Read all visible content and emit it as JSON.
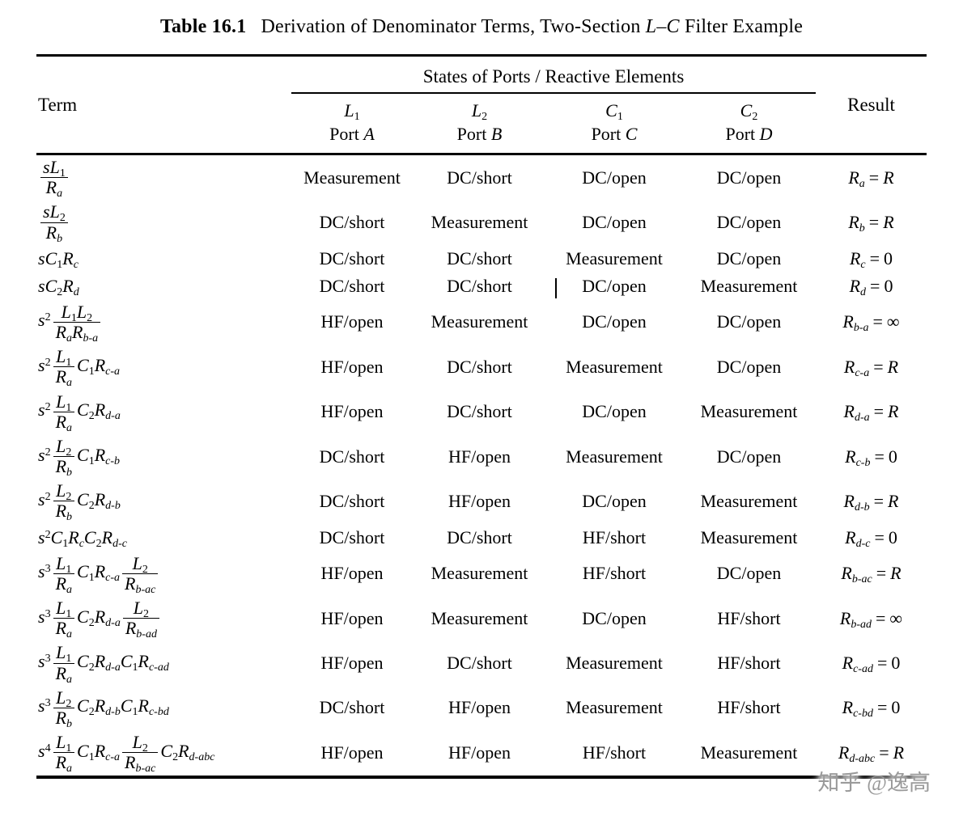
{
  "title": {
    "label": "Table 16.1",
    "segments": [
      {
        "text": "Derivation of Denominator Terms, Two-Section "
      },
      {
        "text": "L",
        "italic": true
      },
      {
        "text": "–"
      },
      {
        "text": "C",
        "italic": true
      },
      {
        "text": " Filter Example"
      }
    ]
  },
  "header": {
    "term": "Term",
    "group": "States of Ports / Reactive Elements",
    "result": "Result",
    "ports": [
      {
        "elem": "L",
        "idx": "1",
        "port_word": "Port",
        "port": "A"
      },
      {
        "elem": "L",
        "idx": "2",
        "port_word": "Port",
        "port": "B"
      },
      {
        "elem": "C",
        "idx": "1",
        "port_word": "Port",
        "port": "C"
      },
      {
        "elem": "C",
        "idx": "2",
        "port_word": "Port",
        "port": "D"
      }
    ]
  },
  "rows": [
    {
      "term": [
        {
          "num": [
            {
              "b": "s"
            },
            {
              "b": "L",
              "sub": "1"
            }
          ],
          "den": [
            {
              "b": "R",
              "sub": "a"
            }
          ]
        }
      ],
      "states": [
        "Measurement",
        "DC/short",
        "DC/open",
        "DC/open"
      ],
      "result": {
        "base": "R",
        "sub": "a",
        "eq": "R"
      }
    },
    {
      "term": [
        {
          "num": [
            {
              "b": "s"
            },
            {
              "b": "L",
              "sub": "2"
            }
          ],
          "den": [
            {
              "b": "R",
              "sub": "b"
            }
          ]
        }
      ],
      "states": [
        "DC/short",
        "Measurement",
        "DC/open",
        "DC/open"
      ],
      "result": {
        "base": "R",
        "sub": "b",
        "eq": "R"
      }
    },
    {
      "term": [
        {
          "b": "s"
        },
        {
          "b": "C",
          "sub": "1"
        },
        {
          "b": "R",
          "sub": "c"
        }
      ],
      "states": [
        "DC/short",
        "DC/short",
        "Measurement",
        "DC/open"
      ],
      "result": {
        "base": "R",
        "sub": "c",
        "eq": "0"
      }
    },
    {
      "term": [
        {
          "b": "s"
        },
        {
          "b": "C",
          "sub": "2"
        },
        {
          "b": "R",
          "sub": "d"
        }
      ],
      "states": [
        "DC/short",
        "DC/short",
        "DC/open",
        "Measurement"
      ],
      "result": {
        "base": "R",
        "sub": "d",
        "eq": "0"
      }
    },
    {
      "term": [
        {
          "b": "s",
          "sup": "2"
        },
        {
          "num": [
            {
              "b": "L",
              "sub": "1"
            },
            {
              "b": "L",
              "sub": "2"
            }
          ],
          "den": [
            {
              "b": "R",
              "sub": "a"
            },
            {
              "b": "R",
              "sub": "b-a"
            }
          ]
        }
      ],
      "states": [
        "HF/open",
        "Measurement",
        "DC/open",
        "DC/open"
      ],
      "result": {
        "base": "R",
        "sub": "b-a",
        "eq": "∞"
      }
    },
    {
      "term": [
        {
          "b": "s",
          "sup": "2"
        },
        {
          "num": [
            {
              "b": "L",
              "sub": "1"
            }
          ],
          "den": [
            {
              "b": "R",
              "sub": "a"
            }
          ]
        },
        {
          "b": "C",
          "sub": "1"
        },
        {
          "b": "R",
          "sub": "c-a"
        }
      ],
      "states": [
        "HF/open",
        "DC/short",
        "Measurement",
        "DC/open"
      ],
      "result": {
        "base": "R",
        "sub": "c-a",
        "eq": "R"
      }
    },
    {
      "term": [
        {
          "b": "s",
          "sup": "2"
        },
        {
          "num": [
            {
              "b": "L",
              "sub": "1"
            }
          ],
          "den": [
            {
              "b": "R",
              "sub": "a"
            }
          ]
        },
        {
          "b": "C",
          "sub": "2"
        },
        {
          "b": "R",
          "sub": "d-a"
        }
      ],
      "states": [
        "HF/open",
        "DC/short",
        "DC/open",
        "Measurement"
      ],
      "result": {
        "base": "R",
        "sub": "d-a",
        "eq": "R"
      }
    },
    {
      "term": [
        {
          "b": "s",
          "sup": "2"
        },
        {
          "num": [
            {
              "b": "L",
              "sub": "2"
            }
          ],
          "den": [
            {
              "b": "R",
              "sub": "b"
            }
          ]
        },
        {
          "b": "C",
          "sub": "1"
        },
        {
          "b": "R",
          "sub": "c-b"
        }
      ],
      "states": [
        "DC/short",
        "HF/open",
        "Measurement",
        "DC/open"
      ],
      "result": {
        "base": "R",
        "sub": "c-b",
        "eq": "0"
      }
    },
    {
      "term": [
        {
          "b": "s",
          "sup": "2"
        },
        {
          "num": [
            {
              "b": "L",
              "sub": "2"
            }
          ],
          "den": [
            {
              "b": "R",
              "sub": "b"
            }
          ]
        },
        {
          "b": "C",
          "sub": "2"
        },
        {
          "b": "R",
          "sub": "d-b"
        }
      ],
      "states": [
        "DC/short",
        "HF/open",
        "DC/open",
        "Measurement"
      ],
      "result": {
        "base": "R",
        "sub": "d-b",
        "eq": "R"
      }
    },
    {
      "term": [
        {
          "b": "s",
          "sup": "2"
        },
        {
          "b": "C",
          "sub": "1"
        },
        {
          "b": "R",
          "sub": "c"
        },
        {
          "b": "C",
          "sub": "2"
        },
        {
          "b": "R",
          "sub": "d-c"
        }
      ],
      "states": [
        "DC/short",
        "DC/short",
        "HF/short",
        "Measurement"
      ],
      "result": {
        "base": "R",
        "sub": "d-c",
        "eq": "0"
      }
    },
    {
      "term": [
        {
          "b": "s",
          "sup": "3"
        },
        {
          "num": [
            {
              "b": "L",
              "sub": "1"
            }
          ],
          "den": [
            {
              "b": "R",
              "sub": "a"
            }
          ]
        },
        {
          "b": "C",
          "sub": "1"
        },
        {
          "b": "R",
          "sub": "c-a"
        },
        {
          "num": [
            {
              "b": "L",
              "sub": "2"
            }
          ],
          "den": [
            {
              "b": "R",
              "sub": "b-ac"
            }
          ]
        }
      ],
      "states": [
        "HF/open",
        "Measurement",
        "HF/short",
        "DC/open"
      ],
      "result": {
        "base": "R",
        "sub": "b-ac",
        "eq": "R"
      }
    },
    {
      "term": [
        {
          "b": "s",
          "sup": "3"
        },
        {
          "num": [
            {
              "b": "L",
              "sub": "1"
            }
          ],
          "den": [
            {
              "b": "R",
              "sub": "a"
            }
          ]
        },
        {
          "b": "C",
          "sub": "2"
        },
        {
          "b": "R",
          "sub": "d-a"
        },
        {
          "num": [
            {
              "b": "L",
              "sub": "2"
            }
          ],
          "den": [
            {
              "b": "R",
              "sub": "b-ad"
            }
          ]
        }
      ],
      "states": [
        "HF/open",
        "Measurement",
        "DC/open",
        "HF/short"
      ],
      "result": {
        "base": "R",
        "sub": "b-ad",
        "eq": "∞"
      }
    },
    {
      "term": [
        {
          "b": "s",
          "sup": "3"
        },
        {
          "num": [
            {
              "b": "L",
              "sub": "1"
            }
          ],
          "den": [
            {
              "b": "R",
              "sub": "a"
            }
          ]
        },
        {
          "b": "C",
          "sub": "2"
        },
        {
          "b": "R",
          "sub": "d-a"
        },
        {
          "b": "C",
          "sub": "1"
        },
        {
          "b": "R",
          "sub": "c-ad"
        }
      ],
      "states": [
        "HF/open",
        "DC/short",
        "Measurement",
        "HF/short"
      ],
      "result": {
        "base": "R",
        "sub": "c-ad",
        "eq": "0"
      }
    },
    {
      "term": [
        {
          "b": "s",
          "sup": "3"
        },
        {
          "num": [
            {
              "b": "L",
              "sub": "2"
            }
          ],
          "den": [
            {
              "b": "R",
              "sub": "b"
            }
          ]
        },
        {
          "b": "C",
          "sub": "2"
        },
        {
          "b": "R",
          "sub": "d-b"
        },
        {
          "b": "C",
          "sub": "1"
        },
        {
          "b": "R",
          "sub": "c-bd"
        }
      ],
      "states": [
        "DC/short",
        "HF/open",
        "Measurement",
        "HF/short"
      ],
      "result": {
        "base": "R",
        "sub": "c-bd",
        "eq": "0"
      }
    },
    {
      "term": [
        {
          "b": "s",
          "sup": "4"
        },
        {
          "num": [
            {
              "b": "L",
              "sub": "1"
            }
          ],
          "den": [
            {
              "b": "R",
              "sub": "a"
            }
          ]
        },
        {
          "b": "C",
          "sub": "1"
        },
        {
          "b": "R",
          "sub": "c-a"
        },
        {
          "num": [
            {
              "b": "L",
              "sub": "2"
            }
          ],
          "den": [
            {
              "b": "R",
              "sub": "b-ac"
            }
          ]
        },
        {
          "b": "C",
          "sub": "2"
        },
        {
          "b": "R",
          "sub": "d-abc"
        }
      ],
      "states": [
        "HF/open",
        "HF/open",
        "HF/short",
        "Measurement"
      ],
      "result": {
        "base": "R",
        "sub": "d-abc",
        "eq": "R"
      }
    }
  ],
  "equals_sign": "=",
  "watermark": "知乎 @逸高"
}
